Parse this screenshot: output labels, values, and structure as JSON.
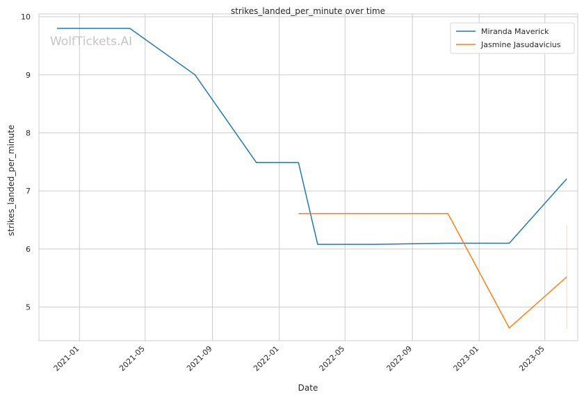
{
  "chart_data": {
    "type": "line",
    "title": "strikes_landed_per_minute over time",
    "xlabel": "Date",
    "ylabel": "strikes_landed_per_minute",
    "watermark": "WolfTickets.AI",
    "x_ticks": [
      "2021-01",
      "2021-05",
      "2021-09",
      "2022-01",
      "2022-05",
      "2022-09",
      "2023-01",
      "2023-05"
    ],
    "y_ticks": [
      5,
      6,
      7,
      8,
      9,
      10
    ],
    "xlim": [
      "2020-10-19",
      "2023-06-30"
    ],
    "ylim": [
      4.42,
      10.05
    ],
    "grid": true,
    "legend_position": "top-right",
    "series": [
      {
        "name": "Miranda Maverick",
        "color": "#1f77b4",
        "points": [
          {
            "x": "2020-11-21",
            "y": 9.8
          },
          {
            "x": "2021-04-03",
            "y": 9.8
          },
          {
            "x": "2021-07-31",
            "y": 9.0
          },
          {
            "x": "2021-11-20",
            "y": 7.49
          },
          {
            "x": "2022-02-05",
            "y": 7.49
          },
          {
            "x": "2022-03-12",
            "y": 6.08
          },
          {
            "x": "2022-06-25",
            "y": 6.08
          },
          {
            "x": "2022-11-05",
            "y": 6.1
          },
          {
            "x": "2023-02-25",
            "y": 6.1
          },
          {
            "x": "2023-06-10",
            "y": 7.21
          }
        ]
      },
      {
        "name": "Jasmine Jasudavicius",
        "color": "#ff7f0e",
        "points": [
          {
            "x": "2022-02-05",
            "y": 6.61
          },
          {
            "x": "2022-11-05",
            "y": 6.61
          },
          {
            "x": "2023-02-25",
            "y": 4.64
          },
          {
            "x": "2023-06-10",
            "y": 5.52
          }
        ],
        "error_band": {
          "x": "2023-06-10",
          "low": 4.62,
          "high": 6.41
        }
      }
    ]
  }
}
